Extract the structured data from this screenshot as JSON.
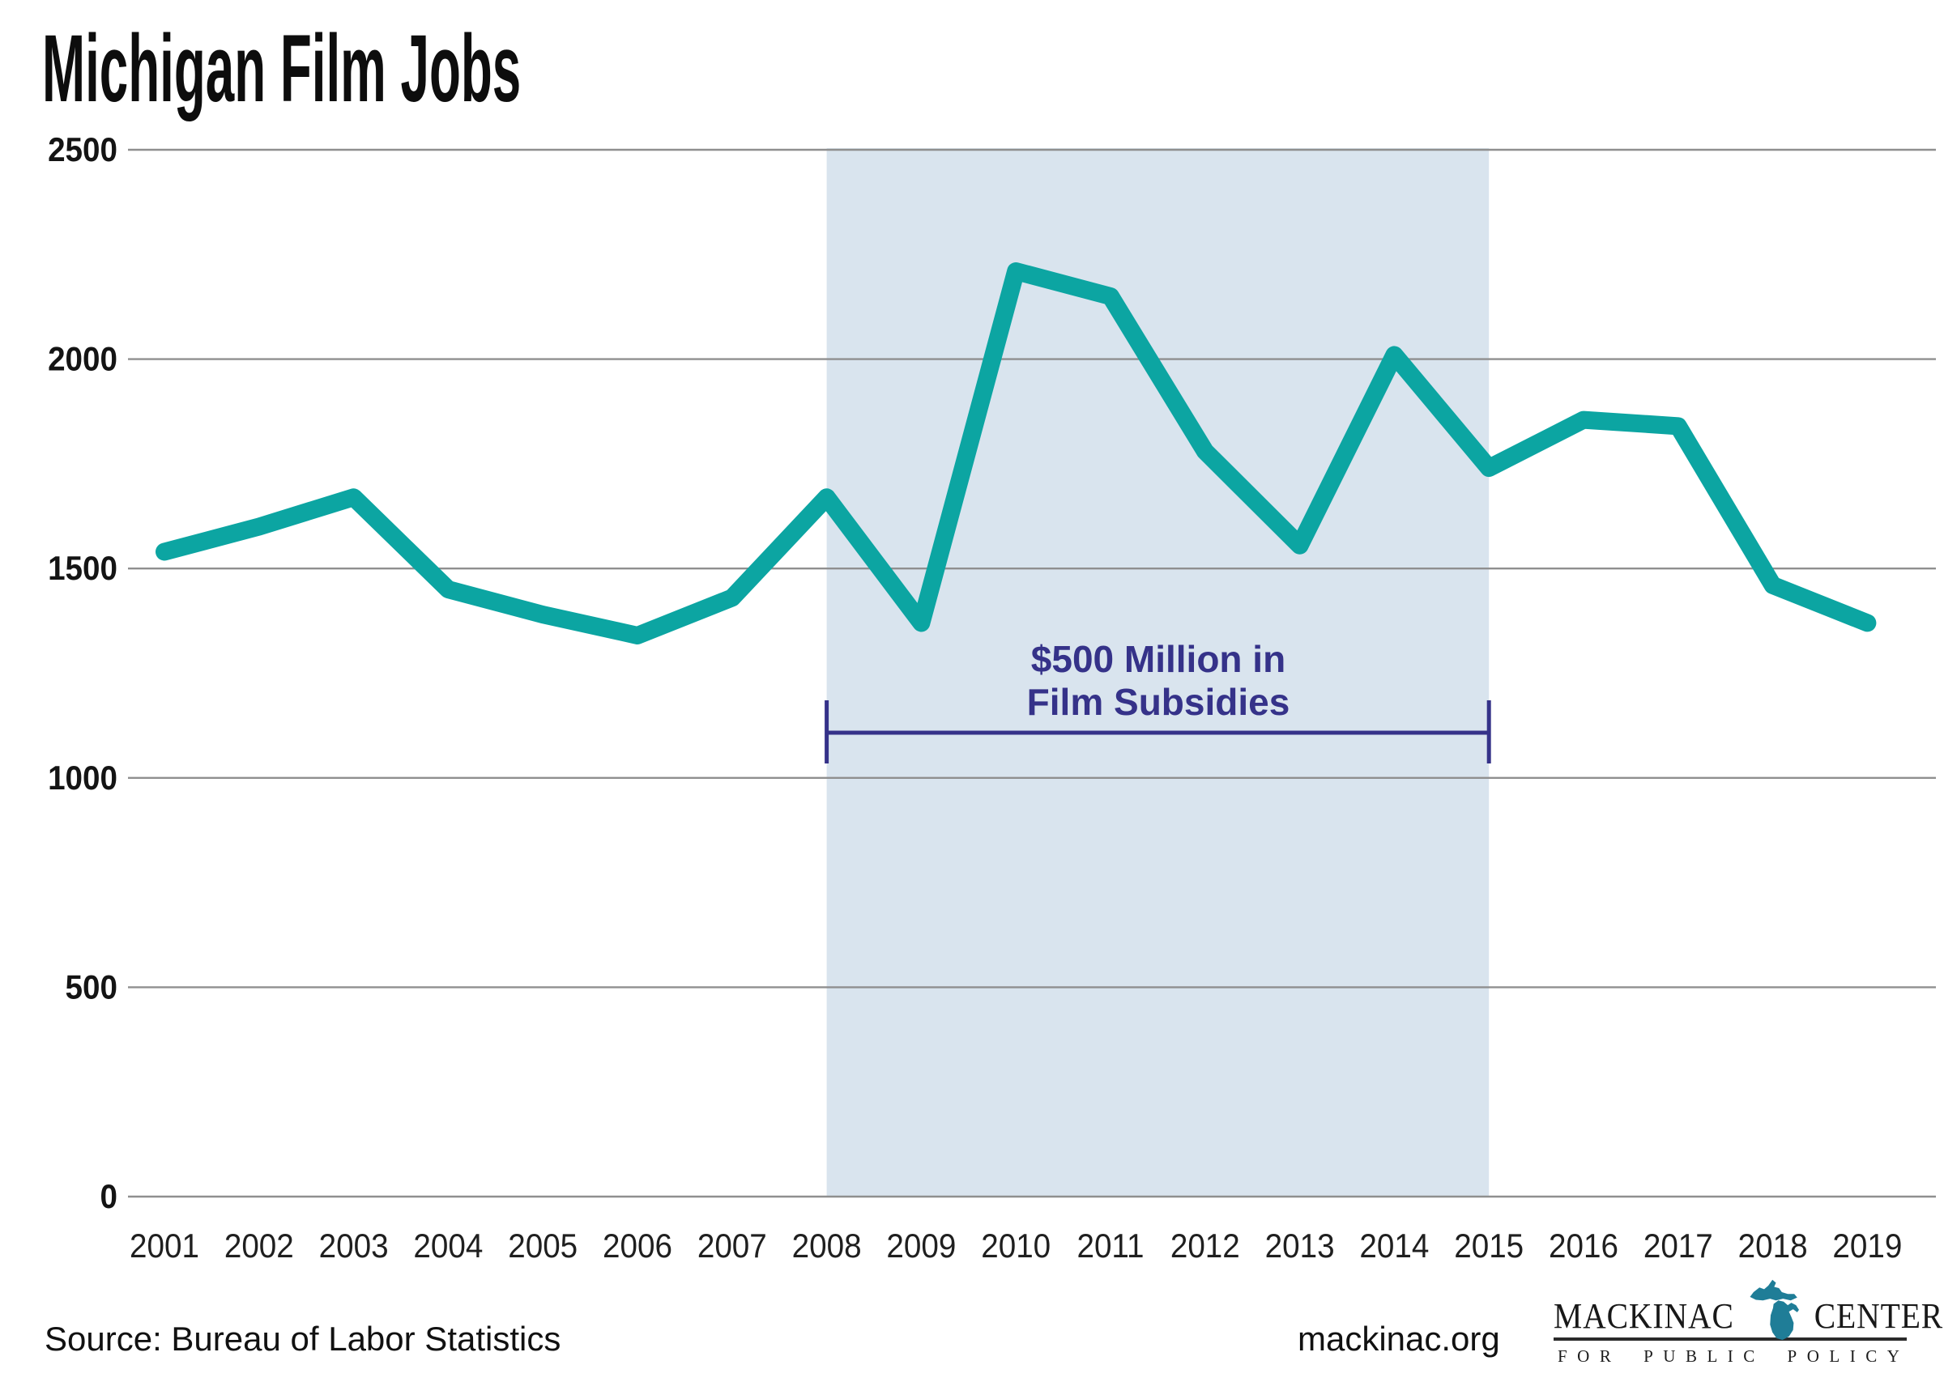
{
  "title": "Michigan Film Jobs",
  "chart_data": {
    "type": "line",
    "title": "Michigan Film Jobs",
    "x": [
      2001,
      2002,
      2003,
      2004,
      2005,
      2006,
      2007,
      2008,
      2009,
      2010,
      2011,
      2012,
      2013,
      2014,
      2015,
      2016,
      2017,
      2018,
      2019
    ],
    "series": [
      {
        "name": "Michigan film jobs",
        "values": [
          1540,
          1600,
          1670,
          1450,
          1390,
          1340,
          1430,
          1670,
          1370,
          2210,
          2150,
          1780,
          1555,
          2010,
          1740,
          1855,
          1840,
          1460,
          1370
        ]
      }
    ],
    "xlabel": "",
    "ylabel": "",
    "ylim": [
      0,
      2500
    ],
    "yticks": [
      0,
      500,
      1000,
      1500,
      2000,
      2500
    ],
    "grid": true,
    "legend_position": "none",
    "line_color": "#0ca5a2",
    "line_width": 22,
    "grid_color": "#8f8f8f",
    "highlight_band": {
      "from": 2008,
      "to": 2015,
      "color": "#d9e4ee"
    },
    "annotation": {
      "lines": [
        "$500 Million in",
        "Film Subsidies"
      ],
      "color": "#353289",
      "bracket_from": 2008,
      "bracket_to": 2015
    }
  },
  "footer": {
    "source": "Source: Bureau of Labor Statistics",
    "site": "mackinac.org"
  },
  "logo": {
    "word1": "MACKINAC",
    "word2": "CENTER",
    "tagline": "FOR PUBLIC POLICY",
    "michigan_color": "#1f7d97"
  }
}
